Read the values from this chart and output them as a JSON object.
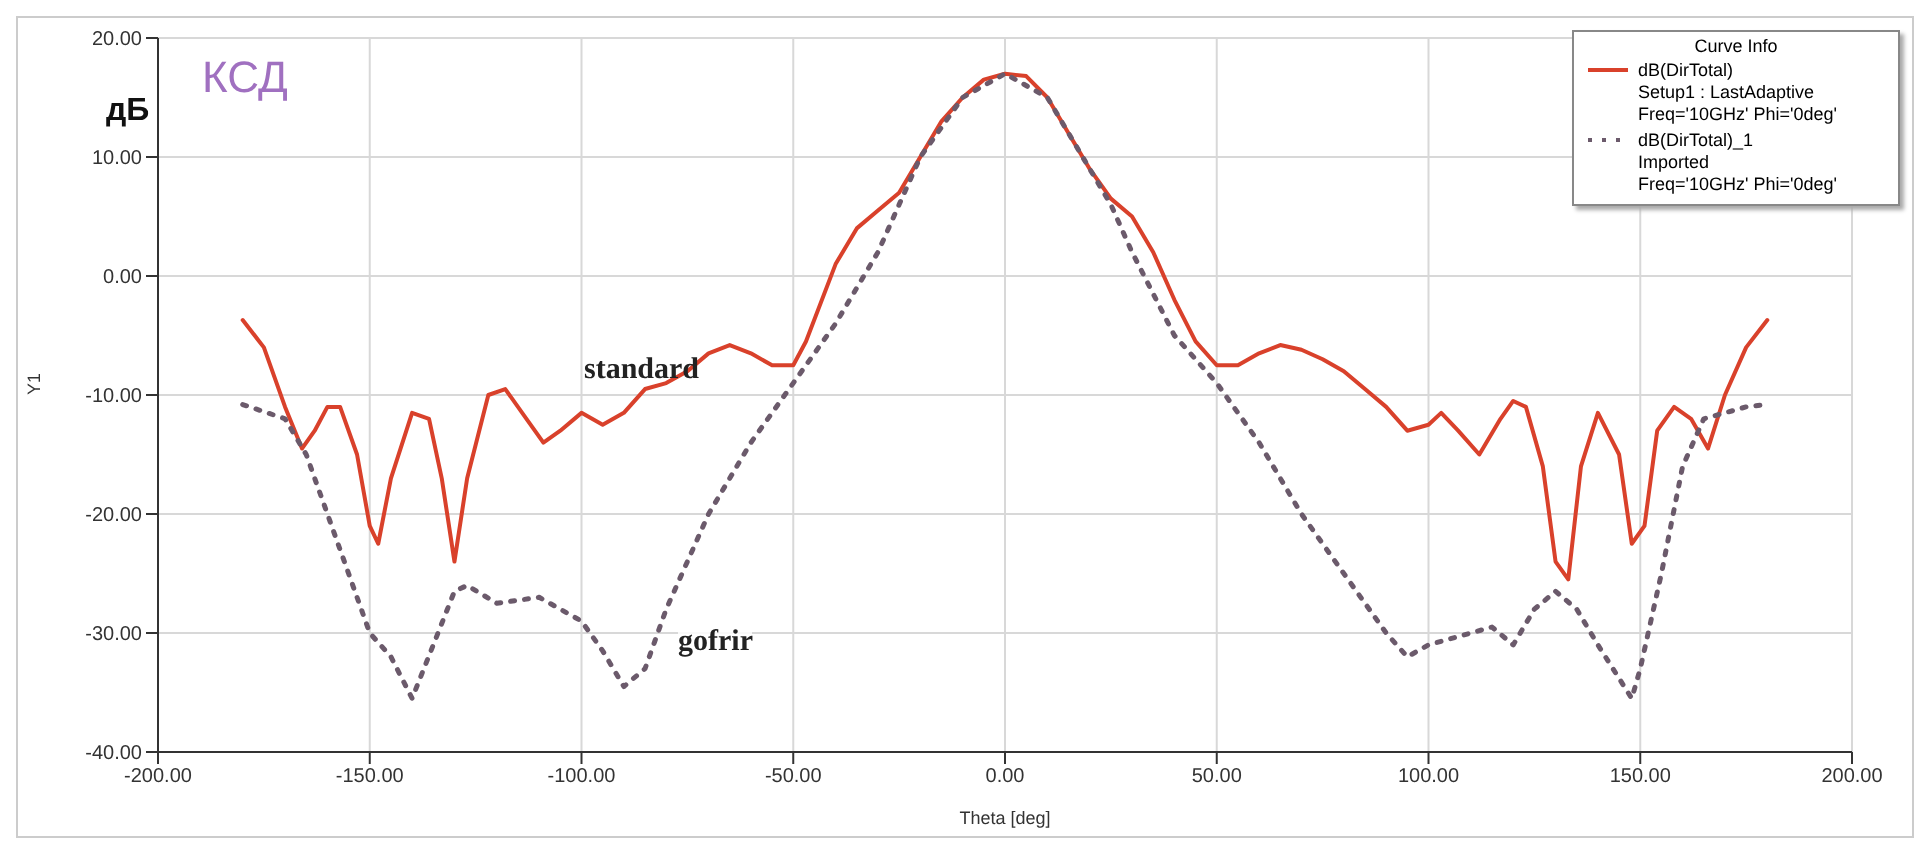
{
  "chart_data": {
    "type": "line",
    "xlabel": "Theta [deg]",
    "ylabel": "Y1",
    "legend_title": "Curve Info",
    "legend": "top right",
    "grid": true,
    "marker": "none",
    "xlim": [
      -200,
      200
    ],
    "xticks": [
      {
        "value": -200,
        "label": "-200.00"
      },
      {
        "value": -150,
        "label": "-150.00"
      },
      {
        "value": -100,
        "label": "-100.00"
      },
      {
        "value": -50,
        "label": "-50.00"
      },
      {
        "value": 0,
        "label": "0.00"
      },
      {
        "value": 50,
        "label": "50.00"
      },
      {
        "value": 100,
        "label": "100.00"
      },
      {
        "value": 150,
        "label": "150.00"
      },
      {
        "value": 200,
        "label": "200.00"
      }
    ],
    "ylim": [
      -40,
      20
    ],
    "yticks": [
      {
        "value": -40,
        "label": "-40.00"
      },
      {
        "value": -30,
        "label": "-30.00"
      },
      {
        "value": -20,
        "label": "-20.00"
      },
      {
        "value": -10,
        "label": "-10.00"
      },
      {
        "value": 0,
        "label": "0.00"
      },
      {
        "value": 10,
        "label": "10.00"
      },
      {
        "value": 20,
        "label": "20.00"
      }
    ],
    "series": [
      {
        "name": "dB(DirTotal)\nSetup1 : LastAdaptive\nFreq='10GHz' Phi='0deg'",
        "color": "#d9412b",
        "line_style": "solid",
        "x": [
          -180,
          -175,
          -170,
          -166,
          -163,
          -160,
          -157,
          -153,
          -150,
          -148,
          -145,
          -140,
          -136,
          -133,
          -130,
          -127,
          -122,
          -118,
          -113,
          -109,
          -105,
          -100,
          -95,
          -90,
          -85,
          -80,
          -75,
          -70,
          -65,
          -60,
          -55,
          -50,
          -47,
          -40,
          -35,
          -30,
          -25,
          -20,
          -15,
          -10,
          -5,
          0,
          5,
          10,
          15,
          20,
          25,
          30,
          35,
          40,
          45,
          50,
          55,
          60,
          65,
          70,
          75,
          80,
          85,
          90,
          95,
          100,
          103,
          107,
          112,
          117,
          120,
          123,
          127,
          130,
          133,
          136,
          140,
          145,
          148,
          151,
          154,
          158,
          162,
          166,
          170,
          175,
          180
        ],
        "values": [
          -3.7,
          -6,
          -11,
          -14.5,
          -13,
          -11,
          -11,
          -15,
          -21,
          -22.5,
          -17,
          -11.5,
          -12,
          -17,
          -24,
          -17,
          -10,
          -9.5,
          -12,
          -14,
          -13,
          -11.5,
          -12.5,
          -11.5,
          -9.5,
          -9,
          -8,
          -6.5,
          -5.8,
          -6.5,
          -7.5,
          -7.5,
          -5.5,
          1,
          4,
          5.5,
          7,
          10,
          13,
          15,
          16.5,
          17,
          16.8,
          15,
          12,
          9,
          6.5,
          5,
          2,
          -2,
          -5.5,
          -7.5,
          -7.5,
          -6.5,
          -5.8,
          -6.2,
          -7,
          -8,
          -9.5,
          -11,
          -13,
          -12.5,
          -11.5,
          -13,
          -15,
          -12,
          -10.5,
          -11,
          -16,
          -24,
          -25.5,
          -16,
          -11.5,
          -15,
          -22.5,
          -21,
          -13,
          -11,
          -12,
          -14.5,
          -10,
          -6,
          -3.7
        ]
      },
      {
        "name": "dB(DirTotal)_1\nImported\nFreq='10GHz' Phi='0deg'",
        "color": "#6b5a6b",
        "line_style": "dotted",
        "x": [
          -180,
          -170,
          -165,
          -160,
          -155,
          -150,
          -145,
          -140,
          -135,
          -130,
          -127,
          -120,
          -110,
          -100,
          -95,
          -90,
          -85,
          -80,
          -70,
          -60,
          -50,
          -40,
          -30,
          -25,
          -20,
          -10,
          0,
          10,
          20,
          25,
          30,
          40,
          50,
          60,
          70,
          80,
          90,
          95,
          100,
          110,
          115,
          120,
          125,
          130,
          135,
          140,
          148,
          150,
          155,
          160,
          165,
          175,
          180
        ],
        "values": [
          -10.8,
          -12,
          -15,
          -20,
          -25,
          -30,
          -32,
          -35.5,
          -31,
          -26.5,
          -26,
          -27.5,
          -27,
          -29,
          -31.5,
          -34.5,
          -33,
          -28,
          -20,
          -14,
          -9,
          -4,
          2,
          6,
          10,
          15,
          17,
          15,
          9,
          6,
          2,
          -5,
          -9,
          -14,
          -20,
          -25,
          -30,
          -32,
          -31,
          -30,
          -29.5,
          -31,
          -28,
          -26.5,
          -28,
          -31,
          -35.5,
          -33,
          -25,
          -16,
          -12,
          -11,
          -10.8
        ]
      }
    ],
    "annotations": [
      "дБ",
      "КСД",
      "standard",
      "gofrir"
    ]
  }
}
